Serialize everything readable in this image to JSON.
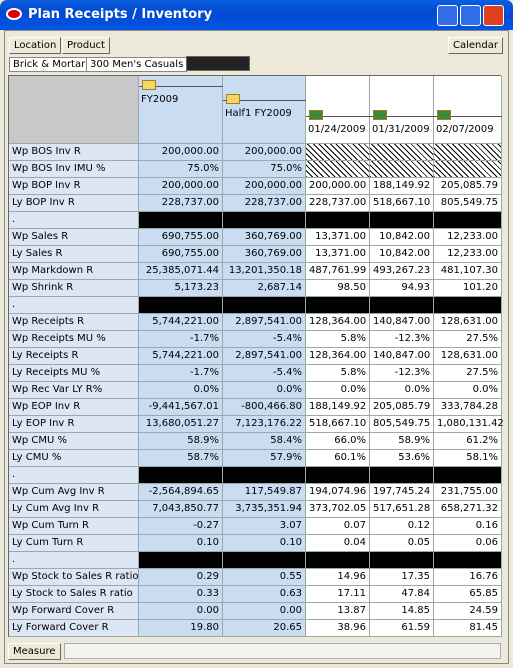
{
  "window": {
    "title": "Plan Receipts / Inventory"
  },
  "toolbar": {
    "left": [
      "Location",
      "Product"
    ],
    "right": "Calendar"
  },
  "context": [
    "Brick & Mortar",
    "300 Men's Casuals"
  ],
  "columns": [
    "FY2009",
    "Half1 FY2009",
    "01/24/2009",
    "01/31/2009",
    "02/07/2009"
  ],
  "rows": [
    {
      "label": "Wp BOS Inv R",
      "values": [
        "200,000.00",
        "200,000.00",
        null,
        null,
        null
      ]
    },
    {
      "label": "Wp BOS Inv IMU %",
      "values": [
        "75.0%",
        "75.0%",
        null,
        null,
        null
      ]
    },
    {
      "label": "Wp BOP Inv R",
      "values": [
        "200,000.00",
        "200,000.00",
        "200,000.00",
        "188,149.92",
        "205,085.79"
      ]
    },
    {
      "label": "Ly BOP Inv R",
      "values": [
        "228,737.00",
        "228,737.00",
        "228,737.00",
        "518,667.10",
        "805,549.75"
      ]
    },
    {
      "label": ".",
      "separator": true
    },
    {
      "label": "Wp Sales R",
      "values": [
        "690,755.00",
        "360,769.00",
        "13,371.00",
        "10,842.00",
        "12,233.00"
      ]
    },
    {
      "label": "Ly Sales R",
      "values": [
        "690,755.00",
        "360,769.00",
        "13,371.00",
        "10,842.00",
        "12,233.00"
      ]
    },
    {
      "label": "Wp Markdown R",
      "values": [
        "25,385,071.44",
        "13,201,350.18",
        "487,761.99",
        "493,267.23",
        "481,107.30"
      ]
    },
    {
      "label": "Wp Shrink R",
      "values": [
        "5,173.23",
        "2,687.14",
        "98.50",
        "94.93",
        "101.20"
      ]
    },
    {
      "label": ".",
      "separator": true
    },
    {
      "label": "Wp Receipts R",
      "values": [
        "5,744,221.00",
        "2,897,541.00",
        "128,364.00",
        "140,847.00",
        "128,631.00"
      ]
    },
    {
      "label": "Wp Receipts MU %",
      "values": [
        "-1.7%",
        "-5.4%",
        "5.8%",
        "-12.3%",
        "27.5%"
      ]
    },
    {
      "label": "Ly Receipts R",
      "values": [
        "5,744,221.00",
        "2,897,541.00",
        "128,364.00",
        "140,847.00",
        "128,631.00"
      ]
    },
    {
      "label": "Ly Receipts MU %",
      "values": [
        "-1.7%",
        "-5.4%",
        "5.8%",
        "-12.3%",
        "27.5%"
      ]
    },
    {
      "label": "Wp Rec Var LY  R%",
      "values": [
        "0.0%",
        "0.0%",
        "0.0%",
        "0.0%",
        "0.0%"
      ]
    },
    {
      "label": "Wp EOP Inv R",
      "values": [
        "-9,441,567.01",
        "-800,466.80",
        "188,149.92",
        "205,085.79",
        "333,784.28"
      ]
    },
    {
      "label": "Ly EOP Inv R",
      "values": [
        "13,680,051.27",
        "7,123,176.22",
        "518,667.10",
        "805,549.75",
        "1,080,131.42"
      ]
    },
    {
      "label": "Wp CMU %",
      "values": [
        "58.9%",
        "58.4%",
        "66.0%",
        "58.9%",
        "61.2%"
      ]
    },
    {
      "label": "Ly CMU %",
      "values": [
        "58.7%",
        "57.9%",
        "60.1%",
        "53.6%",
        "58.1%"
      ]
    },
    {
      "label": ".",
      "separator": true
    },
    {
      "label": "Wp Cum Avg Inv R",
      "values": [
        "-2,564,894.65",
        "117,549.87",
        "194,074.96",
        "197,745.24",
        "231,755.00"
      ]
    },
    {
      "label": "Ly Cum Avg Inv R",
      "values": [
        "7,043,850.77",
        "3,735,351.94",
        "373,702.05",
        "517,651.28",
        "658,271.32"
      ]
    },
    {
      "label": "Wp Cum Turn R",
      "values": [
        "-0.27",
        "3.07",
        "0.07",
        "0.12",
        "0.16"
      ]
    },
    {
      "label": "Ly Cum Turn R",
      "values": [
        "0.10",
        "0.10",
        "0.04",
        "0.05",
        "0.06"
      ]
    },
    {
      "label": ".",
      "separator": true
    },
    {
      "label": "Wp Stock to Sales R ratio",
      "values": [
        "0.29",
        "0.55",
        "14.96",
        "17.35",
        "16.76"
      ]
    },
    {
      "label": "Ly Stock to Sales R ratio",
      "values": [
        "0.33",
        "0.63",
        "17.11",
        "47.84",
        "65.85"
      ]
    },
    {
      "label": "Wp Forward Cover R",
      "values": [
        "0.00",
        "0.00",
        "13.87",
        "14.85",
        "24.59"
      ]
    },
    {
      "label": "Ly Forward Cover R",
      "values": [
        "19.80",
        "20.65",
        "38.96",
        "61.59",
        "81.45"
      ]
    }
  ],
  "footer": {
    "tab": "Measure"
  }
}
